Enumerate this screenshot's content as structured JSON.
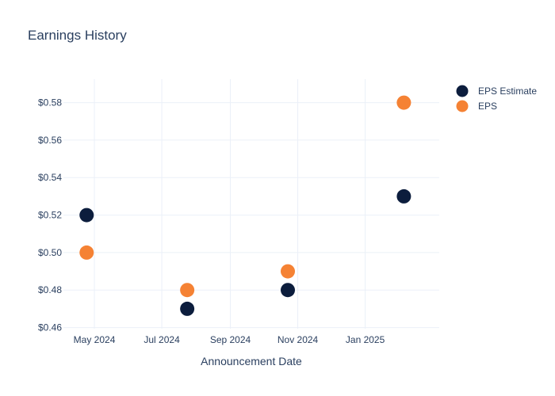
{
  "chart_data": {
    "type": "scatter",
    "title": "Earnings History",
    "xlabel": "Announcement Date",
    "ylabel": "",
    "x_ticks": [
      {
        "date": "2024-05-01",
        "label": "May 2024"
      },
      {
        "date": "2024-07-01",
        "label": "Jul 2024"
      },
      {
        "date": "2024-09-01",
        "label": "Sep 2024"
      },
      {
        "date": "2024-11-01",
        "label": "Nov 2024"
      },
      {
        "date": "2025-01-01",
        "label": "Jan 2025"
      }
    ],
    "xlim": [
      "2024-04-03",
      "2025-03-09"
    ],
    "y_ticks": [
      {
        "value": 0.46,
        "label": "$0.46"
      },
      {
        "value": 0.48,
        "label": "$0.48"
      },
      {
        "value": 0.5,
        "label": "$0.50"
      },
      {
        "value": 0.52,
        "label": "$0.52"
      },
      {
        "value": 0.54,
        "label": "$0.54"
      },
      {
        "value": 0.56,
        "label": "$0.56"
      },
      {
        "value": 0.58,
        "label": "$0.58"
      }
    ],
    "ylim": [
      0.4594,
      0.5925
    ],
    "grid": true,
    "legend_position": "top-right",
    "series": [
      {
        "name": "EPS Estimate",
        "color": "#0c1d3d",
        "points": [
          {
            "x": "2024-04-24",
            "y": 0.52
          },
          {
            "x": "2024-07-24",
            "y": 0.47
          },
          {
            "x": "2024-10-23",
            "y": 0.48
          },
          {
            "x": "2025-02-05",
            "y": 0.53
          }
        ]
      },
      {
        "name": "EPS",
        "color": "#f58234",
        "points": [
          {
            "x": "2024-04-24",
            "y": 0.5
          },
          {
            "x": "2024-07-24",
            "y": 0.48
          },
          {
            "x": "2024-10-23",
            "y": 0.49
          },
          {
            "x": "2025-02-05",
            "y": 0.58
          }
        ]
      }
    ]
  }
}
